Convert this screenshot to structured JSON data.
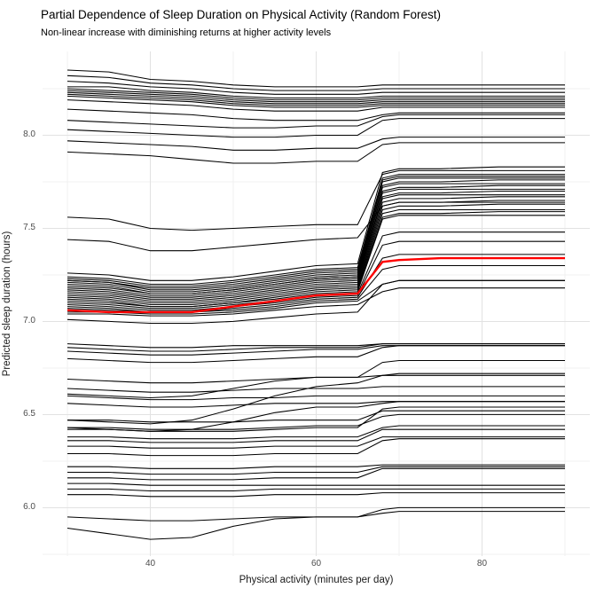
{
  "chart_data": {
    "type": "line",
    "chart_kind": "ice-pdp-partial-dependence",
    "title": "Partial Dependence of Sleep Duration on Physical Activity (Random Forest)",
    "subtitle": "Non-linear increase with diminishing returns at higher activity levels",
    "xlabel": "Physical activity (minutes per day)",
    "ylabel": "Predicted sleep duration (hours)",
    "xlim": [
      27,
      93
    ],
    "ylim": [
      5.74,
      8.45
    ],
    "grid": true,
    "legend": "none",
    "colors": {
      "ice": "#000000",
      "pdp": "#FF0000",
      "grid_major": "#e2e2e2",
      "grid_minor": "#f0f0f0",
      "tick_text": "#4d4d4d",
      "text": "#000000",
      "background": "#ffffff"
    },
    "x_ticks": {
      "major": [
        40,
        60,
        80
      ],
      "labels": [
        "40",
        "60",
        "80"
      ],
      "minor": [
        30,
        50,
        70,
        90
      ]
    },
    "y_ticks": {
      "major": [
        6.0,
        6.5,
        7.0,
        7.5,
        8.0
      ],
      "labels": [
        "6.0",
        "6.5",
        "7.0",
        "7.5",
        "8.0"
      ],
      "minor": [
        5.75,
        6.25,
        6.75,
        7.25,
        7.75,
        8.25
      ]
    },
    "x_grid": [
      30,
      35,
      40,
      45,
      50,
      55,
      60,
      65,
      68,
      70,
      75,
      82,
      90
    ],
    "pdp": {
      "name": "average-partial-dependence",
      "values": [
        7.06,
        7.05,
        7.05,
        7.05,
        7.08,
        7.11,
        7.14,
        7.15,
        7.32,
        7.33,
        7.34,
        7.34,
        7.34
      ]
    },
    "ice_lines": [
      [
        8.35,
        8.34,
        8.3,
        8.29,
        8.27,
        8.26,
        8.26,
        8.26,
        8.27,
        8.27,
        8.27,
        8.27,
        8.27
      ],
      [
        8.32,
        8.31,
        8.28,
        8.27,
        8.25,
        8.24,
        8.24,
        8.24,
        8.25,
        8.25,
        8.25,
        8.25,
        8.25
      ],
      [
        8.29,
        8.28,
        8.26,
        8.25,
        8.23,
        8.22,
        8.22,
        8.22,
        8.23,
        8.23,
        8.23,
        8.23,
        8.23
      ],
      [
        8.26,
        8.26,
        8.24,
        8.23,
        8.21,
        8.2,
        8.2,
        8.2,
        8.21,
        8.21,
        8.21,
        8.21,
        8.21
      ],
      [
        8.25,
        8.24,
        8.23,
        8.22,
        8.2,
        8.19,
        8.19,
        8.19,
        8.2,
        8.2,
        8.2,
        8.2,
        8.2
      ],
      [
        8.24,
        8.23,
        8.22,
        8.21,
        8.19,
        8.18,
        8.18,
        8.18,
        8.19,
        8.19,
        8.19,
        8.19,
        8.19
      ],
      [
        8.23,
        8.22,
        8.21,
        8.2,
        8.18,
        8.17,
        8.17,
        8.17,
        8.18,
        8.18,
        8.18,
        8.18,
        8.18
      ],
      [
        8.22,
        8.21,
        8.2,
        8.19,
        8.17,
        8.16,
        8.16,
        8.16,
        8.17,
        8.17,
        8.17,
        8.17,
        8.17
      ],
      [
        8.21,
        8.2,
        8.19,
        8.18,
        8.16,
        8.15,
        8.15,
        8.15,
        8.16,
        8.16,
        8.16,
        8.16,
        8.16
      ],
      [
        8.19,
        8.18,
        8.17,
        8.16,
        8.14,
        8.13,
        8.13,
        8.13,
        8.15,
        8.15,
        8.15,
        8.15,
        8.15
      ],
      [
        8.14,
        8.13,
        8.12,
        8.11,
        8.09,
        8.08,
        8.08,
        8.08,
        8.11,
        8.12,
        8.12,
        8.12,
        8.12
      ],
      [
        8.08,
        8.07,
        8.06,
        8.05,
        8.04,
        8.04,
        8.05,
        8.05,
        8.1,
        8.11,
        8.11,
        8.11,
        8.11
      ],
      [
        8.03,
        8.02,
        8.01,
        8.0,
        7.99,
        7.99,
        8.0,
        8.0,
        8.08,
        8.09,
        8.09,
        8.09,
        8.09
      ],
      [
        7.97,
        7.96,
        7.95,
        7.94,
        7.92,
        7.92,
        7.93,
        7.93,
        7.98,
        7.99,
        7.99,
        7.99,
        7.99
      ],
      [
        7.91,
        7.9,
        7.89,
        7.87,
        7.85,
        7.85,
        7.86,
        7.86,
        7.95,
        7.96,
        7.96,
        7.96,
        7.96
      ],
      [
        7.56,
        7.55,
        7.5,
        7.49,
        7.5,
        7.51,
        7.52,
        7.52,
        7.79,
        7.81,
        7.81,
        7.81,
        7.81
      ],
      [
        7.44,
        7.43,
        7.38,
        7.38,
        7.4,
        7.42,
        7.44,
        7.45,
        7.62,
        7.64,
        7.64,
        7.65,
        7.65
      ],
      [
        7.26,
        7.25,
        7.22,
        7.22,
        7.24,
        7.27,
        7.3,
        7.31,
        7.8,
        7.82,
        7.82,
        7.83,
        7.83
      ],
      [
        7.24,
        7.23,
        7.2,
        7.2,
        7.22,
        7.25,
        7.28,
        7.29,
        7.77,
        7.79,
        7.79,
        7.79,
        7.79
      ],
      [
        7.23,
        7.22,
        7.19,
        7.19,
        7.21,
        7.24,
        7.27,
        7.28,
        7.76,
        7.78,
        7.78,
        7.78,
        7.78
      ],
      [
        7.22,
        7.21,
        7.18,
        7.18,
        7.2,
        7.23,
        7.26,
        7.27,
        7.75,
        7.77,
        7.77,
        7.77,
        7.77
      ],
      [
        7.22,
        7.21,
        7.17,
        7.17,
        7.19,
        7.22,
        7.25,
        7.26,
        7.73,
        7.75,
        7.75,
        7.76,
        7.76
      ],
      [
        7.21,
        7.2,
        7.16,
        7.16,
        7.18,
        7.21,
        7.24,
        7.25,
        7.72,
        7.74,
        7.74,
        7.74,
        7.74
      ],
      [
        7.2,
        7.19,
        7.15,
        7.15,
        7.17,
        7.2,
        7.23,
        7.24,
        7.7,
        7.72,
        7.72,
        7.73,
        7.73
      ],
      [
        7.19,
        7.18,
        7.15,
        7.15,
        7.17,
        7.2,
        7.23,
        7.24,
        7.69,
        7.71,
        7.71,
        7.71,
        7.71
      ],
      [
        7.18,
        7.17,
        7.14,
        7.14,
        7.16,
        7.19,
        7.22,
        7.23,
        7.67,
        7.69,
        7.69,
        7.7,
        7.7
      ],
      [
        7.17,
        7.16,
        7.13,
        7.13,
        7.15,
        7.18,
        7.21,
        7.22,
        7.66,
        7.68,
        7.68,
        7.68,
        7.68
      ],
      [
        7.16,
        7.15,
        7.12,
        7.12,
        7.14,
        7.17,
        7.2,
        7.21,
        7.64,
        7.66,
        7.66,
        7.67,
        7.67
      ],
      [
        7.15,
        7.14,
        7.11,
        7.11,
        7.13,
        7.16,
        7.19,
        7.2,
        7.62,
        7.64,
        7.64,
        7.64,
        7.64
      ],
      [
        7.14,
        7.13,
        7.1,
        7.1,
        7.12,
        7.15,
        7.18,
        7.19,
        7.6,
        7.62,
        7.62,
        7.63,
        7.63
      ],
      [
        7.13,
        7.12,
        7.09,
        7.09,
        7.11,
        7.14,
        7.17,
        7.18,
        7.58,
        7.6,
        7.6,
        7.6,
        7.6
      ],
      [
        7.12,
        7.11,
        7.08,
        7.08,
        7.1,
        7.13,
        7.16,
        7.17,
        7.56,
        7.58,
        7.58,
        7.59,
        7.59
      ],
      [
        7.11,
        7.1,
        7.08,
        7.08,
        7.1,
        7.12,
        7.15,
        7.16,
        7.55,
        7.57,
        7.57,
        7.57,
        7.57
      ],
      [
        7.1,
        7.09,
        7.07,
        7.07,
        7.09,
        7.11,
        7.14,
        7.15,
        7.46,
        7.48,
        7.48,
        7.48,
        7.48
      ],
      [
        7.09,
        7.08,
        7.06,
        7.06,
        7.08,
        7.1,
        7.13,
        7.14,
        7.41,
        7.43,
        7.43,
        7.43,
        7.43
      ],
      [
        7.08,
        7.07,
        7.05,
        7.05,
        7.07,
        7.09,
        7.12,
        7.13,
        7.34,
        7.36,
        7.36,
        7.36,
        7.36
      ],
      [
        7.07,
        7.06,
        7.05,
        7.05,
        7.06,
        7.08,
        7.11,
        7.12,
        7.28,
        7.3,
        7.3,
        7.3,
        7.3
      ],
      [
        7.05,
        7.05,
        7.04,
        7.04,
        7.05,
        7.07,
        7.1,
        7.11,
        7.2,
        7.22,
        7.22,
        7.22,
        7.22
      ],
      [
        7.04,
        7.04,
        7.03,
        7.03,
        7.04,
        7.06,
        7.08,
        7.09,
        7.16,
        7.18,
        7.18,
        7.18,
        7.18
      ],
      [
        7.01,
        7.0,
        6.99,
        6.99,
        7.0,
        7.02,
        7.04,
        7.05,
        7.2,
        7.22,
        7.22,
        7.22,
        7.22
      ],
      [
        6.88,
        6.87,
        6.86,
        6.86,
        6.87,
        6.87,
        6.87,
        6.87,
        6.88,
        6.88,
        6.88,
        6.88,
        6.88
      ],
      [
        6.86,
        6.85,
        6.84,
        6.84,
        6.85,
        6.86,
        6.86,
        6.86,
        6.88,
        6.88,
        6.88,
        6.88,
        6.88
      ],
      [
        6.84,
        6.83,
        6.82,
        6.82,
        6.83,
        6.84,
        6.85,
        6.85,
        6.87,
        6.87,
        6.87,
        6.87,
        6.87
      ],
      [
        6.8,
        6.79,
        6.78,
        6.78,
        6.79,
        6.8,
        6.81,
        6.81,
        6.86,
        6.87,
        6.87,
        6.87,
        6.87
      ],
      [
        6.69,
        6.68,
        6.67,
        6.67,
        6.68,
        6.69,
        6.7,
        6.7,
        6.71,
        6.71,
        6.71,
        6.71,
        6.71
      ],
      [
        6.64,
        6.63,
        6.62,
        6.62,
        6.63,
        6.64,
        6.64,
        6.64,
        6.65,
        6.65,
        6.65,
        6.65,
        6.65
      ],
      [
        6.61,
        6.6,
        6.59,
        6.6,
        6.64,
        6.68,
        6.7,
        6.7,
        6.78,
        6.79,
        6.79,
        6.79,
        6.79
      ],
      [
        6.6,
        6.59,
        6.58,
        6.58,
        6.59,
        6.59,
        6.6,
        6.6,
        6.6,
        6.6,
        6.6,
        6.6,
        6.6
      ],
      [
        6.56,
        6.55,
        6.54,
        6.54,
        6.55,
        6.56,
        6.56,
        6.56,
        6.57,
        6.57,
        6.57,
        6.57,
        6.57
      ],
      [
        6.47,
        6.46,
        6.45,
        6.47,
        6.53,
        6.6,
        6.65,
        6.67,
        6.71,
        6.72,
        6.72,
        6.72,
        6.72
      ],
      [
        6.43,
        6.42,
        6.41,
        6.42,
        6.46,
        6.51,
        6.54,
        6.54,
        6.56,
        6.57,
        6.57,
        6.57,
        6.57
      ],
      [
        6.47,
        6.47,
        6.46,
        6.46,
        6.46,
        6.47,
        6.47,
        6.47,
        6.52,
        6.52,
        6.52,
        6.52,
        6.52
      ],
      [
        6.43,
        6.43,
        6.42,
        6.42,
        6.42,
        6.43,
        6.44,
        6.44,
        6.49,
        6.5,
        6.5,
        6.5,
        6.5
      ],
      [
        6.42,
        6.42,
        6.41,
        6.41,
        6.41,
        6.42,
        6.43,
        6.43,
        6.53,
        6.54,
        6.54,
        6.54,
        6.54
      ],
      [
        6.38,
        6.38,
        6.37,
        6.37,
        6.37,
        6.38,
        6.38,
        6.38,
        6.43,
        6.44,
        6.44,
        6.44,
        6.44
      ],
      [
        6.36,
        6.36,
        6.35,
        6.35,
        6.35,
        6.36,
        6.36,
        6.36,
        6.42,
        6.42,
        6.42,
        6.42,
        6.42
      ],
      [
        6.33,
        6.33,
        6.32,
        6.32,
        6.32,
        6.33,
        6.33,
        6.33,
        6.38,
        6.38,
        6.38,
        6.38,
        6.38
      ],
      [
        6.29,
        6.29,
        6.28,
        6.28,
        6.28,
        6.29,
        6.29,
        6.29,
        6.36,
        6.37,
        6.37,
        6.37,
        6.37
      ],
      [
        6.22,
        6.22,
        6.21,
        6.21,
        6.21,
        6.22,
        6.22,
        6.22,
        6.23,
        6.23,
        6.23,
        6.23,
        6.23
      ],
      [
        6.19,
        6.19,
        6.18,
        6.18,
        6.18,
        6.19,
        6.19,
        6.19,
        6.22,
        6.22,
        6.22,
        6.22,
        6.22
      ],
      [
        6.16,
        6.16,
        6.15,
        6.15,
        6.15,
        6.16,
        6.16,
        6.16,
        6.21,
        6.21,
        6.21,
        6.21,
        6.21
      ],
      [
        6.13,
        6.13,
        6.12,
        6.12,
        6.12,
        6.12,
        6.12,
        6.12,
        6.12,
        6.12,
        6.12,
        6.12,
        6.12
      ],
      [
        6.1,
        6.1,
        6.09,
        6.09,
        6.09,
        6.1,
        6.1,
        6.1,
        6.1,
        6.1,
        6.1,
        6.1,
        6.1
      ],
      [
        6.07,
        6.07,
        6.06,
        6.06,
        6.06,
        6.07,
        6.07,
        6.07,
        6.08,
        6.08,
        6.08,
        6.08,
        6.08
      ],
      [
        5.95,
        5.94,
        5.93,
        5.93,
        5.94,
        5.95,
        5.95,
        5.95,
        5.99,
        6.0,
        6.0,
        6.0,
        6.0
      ],
      [
        5.89,
        5.86,
        5.83,
        5.84,
        5.9,
        5.94,
        5.95,
        5.95,
        5.97,
        5.98,
        5.98,
        5.98,
        5.98
      ]
    ]
  }
}
